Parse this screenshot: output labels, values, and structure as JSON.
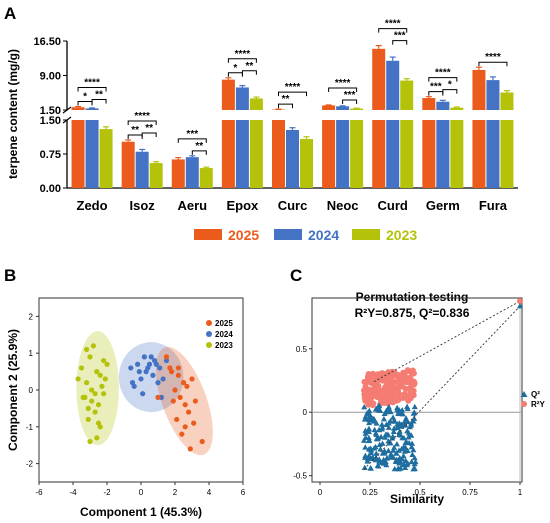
{
  "panels": {
    "A": {
      "letter": "A"
    },
    "B": {
      "letter": "B"
    },
    "C": {
      "letter": "C",
      "title": "Permutation testing",
      "subtitle": "R²Y=0.875, Q²=0.836"
    }
  },
  "colors": {
    "2025": "#ea5b1c",
    "2024": "#4472c4",
    "2023": "#b4c20a",
    "q2": "#1f6ea0",
    "r2y": "#f47c72"
  },
  "chart_data": [
    {
      "type": "bar",
      "panel": "A",
      "ylabel": "terpene content (mg/g)",
      "axis_break": [
        1.5,
        1.5
      ],
      "lower_ylim": [
        0,
        1.5
      ],
      "lower_ticks": [
        "0.00",
        "0.75",
        "1.50"
      ],
      "upper_ylim": [
        1.5,
        16.5
      ],
      "upper_ticks": [
        "1.50",
        "9.00",
        "16.50"
      ],
      "categories": [
        "Zedo",
        "Isoz",
        "Aeru",
        "Epox",
        "Curc",
        "Neoc",
        "Curd",
        "Germ",
        "Fura"
      ],
      "series": [
        {
          "name": "2025",
          "values": [
            2.1,
            1.02,
            0.63,
            8.1,
            1.6,
            2.5,
            14.8,
            4.1,
            10.2
          ],
          "errors": [
            0.15,
            0.04,
            0.04,
            0.4,
            0.1,
            0.1,
            0.7,
            0.3,
            0.6
          ]
        },
        {
          "name": "2024",
          "values": [
            1.85,
            0.8,
            0.68,
            6.4,
            1.28,
            2.3,
            12.2,
            3.3,
            8.0
          ],
          "errors": [
            0.1,
            0.05,
            0.03,
            0.4,
            0.05,
            0.1,
            0.8,
            0.3,
            0.7
          ]
        },
        {
          "name": "2023",
          "values": [
            1.3,
            0.55,
            0.44,
            4.0,
            1.08,
            1.8,
            7.9,
            2.0,
            5.3
          ],
          "errors": [
            0.05,
            0.03,
            0.02,
            0.3,
            0.05,
            0.1,
            0.4,
            0.15,
            0.4
          ]
        }
      ],
      "significance": [
        {
          "cat": "Zedo",
          "pairs": [
            [
              "2025",
              "2024",
              "*"
            ],
            [
              "2024",
              "2023",
              "**"
            ],
            [
              "2025",
              "2023",
              "****"
            ]
          ]
        },
        {
          "cat": "Isoz",
          "pairs": [
            [
              "2025",
              "2024",
              "**"
            ],
            [
              "2024",
              "2023",
              "**"
            ],
            [
              "2025",
              "2023",
              "****"
            ]
          ]
        },
        {
          "cat": "Aeru",
          "pairs": [
            [
              "2024",
              "2023",
              "**"
            ],
            [
              "2025",
              "2023",
              "***"
            ]
          ]
        },
        {
          "cat": "Epox",
          "pairs": [
            [
              "2025",
              "2024",
              "*"
            ],
            [
              "2024",
              "2023",
              "**"
            ],
            [
              "2025",
              "2023",
              "****"
            ]
          ]
        },
        {
          "cat": "Curc",
          "pairs": [
            [
              "2025",
              "2024",
              "**"
            ],
            [
              "2025",
              "2023",
              "****"
            ]
          ]
        },
        {
          "cat": "Neoc",
          "pairs": [
            [
              "2024",
              "2023",
              "***"
            ],
            [
              "2025",
              "2023",
              "****"
            ]
          ]
        },
        {
          "cat": "Curd",
          "pairs": [
            [
              "2024",
              "2023",
              "***"
            ],
            [
              "2025",
              "2023",
              "****"
            ]
          ]
        },
        {
          "cat": "Germ",
          "pairs": [
            [
              "2025",
              "2024",
              "***"
            ],
            [
              "2024",
              "2023",
              "*"
            ],
            [
              "2025",
              "2023",
              "****"
            ]
          ]
        },
        {
          "cat": "Fura",
          "pairs": [
            [
              "2025",
              "2023",
              "****"
            ]
          ]
        }
      ],
      "legend": [
        "2025",
        "2024",
        "2023"
      ],
      "legend_position": "bottom"
    },
    {
      "type": "scatter",
      "panel": "B",
      "xlabel": "Component 1 (45.3%)",
      "ylabel": "Component 2 (25.9%)",
      "xlim": [
        -6,
        6
      ],
      "ylim": [
        -2.5,
        2.5
      ],
      "xticks": [
        "-6",
        "-4",
        "-2",
        "0",
        "2",
        "4",
        "6"
      ],
      "yticks": [
        "-2",
        "-1",
        "0",
        "1",
        "2"
      ],
      "legend": [
        "2025",
        "2024",
        "2023"
      ],
      "legend_position": "top-right",
      "ellipses": [
        {
          "name": "2023",
          "cx": -2.55,
          "cy": 0.05,
          "rx": 1.25,
          "ry": 1.55,
          "angle": 0
        },
        {
          "name": "2024",
          "cx": 0.6,
          "cy": 0.35,
          "rx": 1.9,
          "ry": 0.95,
          "angle": 0
        },
        {
          "name": "2025",
          "cx": 2.55,
          "cy": -0.3,
          "rx": 1.3,
          "ry": 1.55,
          "angle": 20
        }
      ],
      "series": [
        {
          "name": "2023",
          "x": [
            -3.7,
            -3.5,
            -3.3,
            -3.2,
            -3.0,
            -2.8,
            -2.6,
            -2.4,
            -2.3,
            -2.2,
            -2.9,
            -3.1,
            -2.7,
            -2.5,
            -3.4,
            -2.0,
            -2.1,
            -2.6,
            -3.0,
            -2.4,
            -3.2,
            -2.7,
            -2.2,
            -2.9,
            -3.1,
            -2.5
          ],
          "y": [
            0.3,
            0.6,
            -0.2,
            1.1,
            0.9,
            1.2,
            0.5,
            0.4,
            0.1,
            -0.1,
            -0.3,
            -0.5,
            -0.6,
            -0.9,
            -0.2,
            0.7,
            0.3,
            -1.3,
            -1.4,
            -1.0,
            0.2,
            -0.1,
            0.8,
            0.0,
            -0.8,
            -0.4
          ]
        },
        {
          "name": "2024",
          "x": [
            -0.6,
            -0.4,
            -0.2,
            0.0,
            0.2,
            0.3,
            0.5,
            0.7,
            0.8,
            1.0,
            1.1,
            1.3,
            1.5,
            0.1,
            -0.1,
            0.6,
            0.9,
            -0.5,
            1.2,
            0.4
          ],
          "y": [
            0.6,
            0.1,
            0.7,
            0.3,
            0.9,
            0.5,
            0.7,
            0.4,
            0.8,
            0.2,
            0.6,
            0.3,
            0.8,
            -0.1,
            0.5,
            0.9,
            0.7,
            0.2,
            -0.2,
            0.6
          ]
        },
        {
          "name": "2025",
          "x": [
            1.5,
            1.8,
            2.0,
            2.2,
            2.3,
            2.5,
            2.6,
            2.7,
            2.8,
            3.0,
            3.1,
            2.1,
            1.9,
            2.4,
            2.9,
            3.6,
            1.7,
            2.6,
            3.2,
            2.2,
            1.0
          ],
          "y": [
            0.9,
            0.5,
            0.0,
            0.4,
            -0.2,
            0.2,
            -0.4,
            0.1,
            -0.6,
            0.3,
            -0.9,
            -0.8,
            -0.3,
            -1.2,
            -1.6,
            -1.4,
            0.6,
            -1.0,
            -0.3,
            0.6,
            -0.2
          ]
        }
      ]
    },
    {
      "type": "scatter",
      "panel": "C",
      "title": "Permutation testing",
      "subtitle": "R²Y=0.875, Q²=0.836",
      "xlabel": "Similarity",
      "xlim": [
        0,
        1.05
      ],
      "ylim": [
        -0.55,
        0.9
      ],
      "xticks": [
        "0",
        "0.25",
        "0.5",
        "0.75",
        "1"
      ],
      "yticks": [
        "-0.5",
        "0",
        "0.5"
      ],
      "legend": [
        "Q²",
        "R²Y"
      ],
      "legend_position": "right",
      "original": {
        "similarity": 1.0,
        "r2y": 0.875,
        "q2": 0.836
      },
      "r2y_intercept_point": [
        0.27,
        0.24
      ],
      "q2_intercept_point": [
        0.22,
        -0.45
      ]
    }
  ]
}
